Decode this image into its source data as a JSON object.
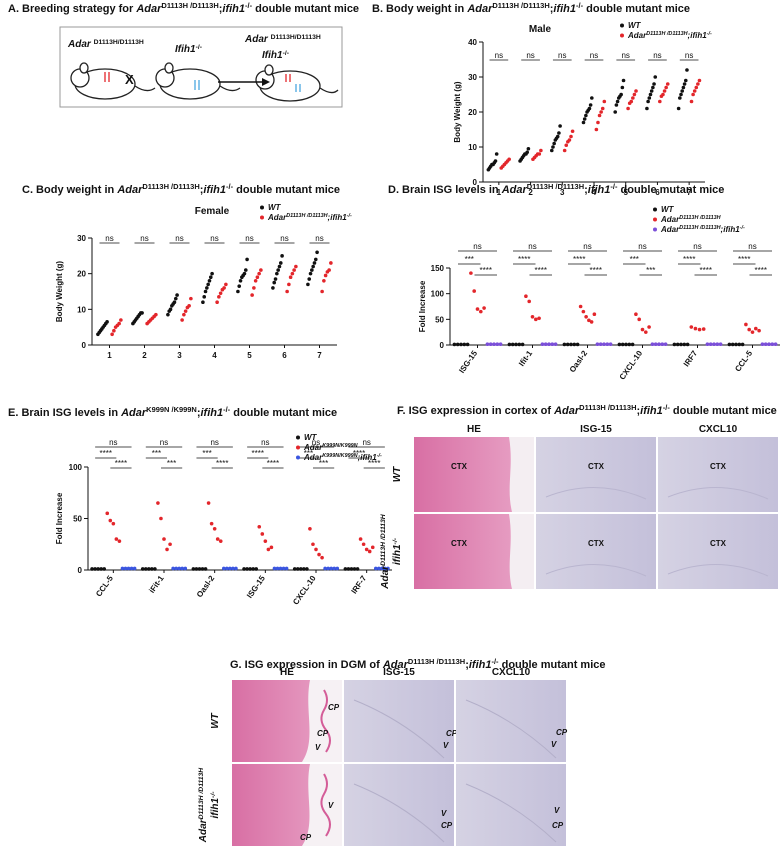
{
  "panel_a": {
    "title": "A.  Breeding strategy for AdarD1113H /D1113H;ifih1-/- double mutant mice",
    "parent1": "Adar D1113H/D1113H",
    "cross": "X",
    "parent2": "Ifih1-/-",
    "offspring": [
      "Adar D1113H/D1113H",
      "Ifih1-/-"
    ]
  },
  "chart_data": [
    {
      "type": "dotplot",
      "title": "B.   Body weight in AdarD1113H /D1113H;ifih1-/- double mutant mice",
      "subtitle": "Male",
      "ylabel": "Body Weight (g)",
      "categories": [
        "1",
        "2",
        "3",
        "4",
        "5",
        "6",
        "7"
      ],
      "series": [
        {
          "name": "WT",
          "color": "#111111",
          "values": [
            [
              3.5,
              4,
              4.5,
              5,
              5,
              5.5,
              6,
              8
            ],
            [
              6,
              6.5,
              7,
              7.5,
              8,
              8,
              8.5,
              9.5
            ],
            [
              9,
              10,
              11,
              12,
              12.5,
              13,
              14,
              16
            ],
            [
              17,
              18,
              19,
              20,
              20.5,
              21,
              22,
              24
            ],
            [
              20,
              22,
              23,
              24,
              24.5,
              25,
              27,
              29
            ],
            [
              21,
              23,
              24,
              25,
              26,
              27,
              28,
              30
            ],
            [
              21,
              24,
              25,
              26,
              27,
              28,
              29,
              32
            ]
          ]
        },
        {
          "name": "AdarD1113H /D1113H;ifih1-/-",
          "color": "#e3262b",
          "values": [
            [
              4,
              4.5,
              5,
              5.5,
              6,
              6.5
            ],
            [
              6.5,
              7,
              7.5,
              8,
              8,
              9
            ],
            [
              9,
              10.5,
              11.5,
              12,
              13,
              14.5
            ],
            [
              15,
              17,
              19,
              20,
              21,
              23
            ],
            [
              21,
              22.5,
              23,
              24,
              25,
              26
            ],
            [
              23,
              24.5,
              25,
              26,
              27,
              28
            ],
            [
              23,
              25,
              26,
              27,
              28,
              29
            ]
          ]
        }
      ],
      "ylim": [
        0,
        40
      ],
      "yticks": [
        0,
        10,
        20,
        30,
        40
      ],
      "significance": [
        [
          "ns"
        ],
        [
          "ns"
        ],
        [
          "ns"
        ],
        [
          "ns"
        ],
        [
          "ns"
        ],
        [
          "ns"
        ],
        [
          "ns"
        ]
      ],
      "legend": "upper right"
    },
    {
      "type": "dotplot",
      "title": "C.   Body weight in AdarD1113H /D1113H;ifih1-/- double mutant mice",
      "subtitle": "Female",
      "ylabel": "Body Weight (g)",
      "categories": [
        "1",
        "2",
        "3",
        "4",
        "5",
        "6",
        "7"
      ],
      "series": [
        {
          "name": "WT",
          "color": "#111111",
          "values": [
            [
              3,
              3.5,
              4,
              4.5,
              5,
              5.5,
              6,
              6.5
            ],
            [
              6,
              6.5,
              7,
              7.5,
              8,
              8.5,
              9,
              9
            ],
            [
              8.5,
              9.5,
              10,
              11,
              11.5,
              12,
              13,
              14
            ],
            [
              12,
              13.5,
              15,
              16,
              17,
              18,
              19,
              20
            ],
            [
              15,
              16.5,
              18,
              19,
              19.5,
              20,
              21,
              24
            ],
            [
              16,
              17.5,
              18.5,
              20,
              21,
              22,
              23,
              25
            ],
            [
              17,
              18.5,
              20,
              21,
              22,
              23,
              24,
              26
            ]
          ]
        },
        {
          "name": "AdarD1113H /D1113H;ifih1-/-",
          "color": "#e3262b",
          "values": [
            [
              3,
              4,
              5,
              5.5,
              6,
              7
            ],
            [
              6,
              6.5,
              7,
              7.5,
              8,
              8.5
            ],
            [
              7,
              8.5,
              9.5,
              10.5,
              11,
              13
            ],
            [
              12,
              13.5,
              14.5,
              15.5,
              16,
              17
            ],
            [
              14,
              16,
              18,
              19,
              20,
              21
            ],
            [
              15,
              17,
              19,
              20,
              21,
              22
            ],
            [
              15,
              18,
              19.5,
              20.5,
              21,
              23
            ]
          ]
        }
      ],
      "ylim": [
        0,
        30
      ],
      "yticks": [
        0,
        10,
        20,
        30
      ],
      "significance": [
        [
          "ns"
        ],
        [
          "ns"
        ],
        [
          "ns"
        ],
        [
          "ns"
        ],
        [
          "ns"
        ],
        [
          "ns"
        ],
        [
          "ns"
        ]
      ],
      "legend": "upper right"
    },
    {
      "type": "dotplot",
      "title": "D. Brain ISG levels in AdarD1113H /D1113H;ifih1-/- double mutant mice",
      "ylabel": "Fold Increase",
      "categories": [
        "ISG-15",
        "Ifit-1",
        "Oasl-2",
        "CXCL-10",
        "IRF7",
        "CCL-5"
      ],
      "series": [
        {
          "name": "WT",
          "color": "#111111",
          "values": [
            [
              1,
              1,
              1,
              1,
              1
            ],
            [
              1,
              1,
              1,
              1,
              1
            ],
            [
              1,
              1,
              1,
              1,
              1
            ],
            [
              1,
              1,
              1,
              1,
              1
            ],
            [
              1,
              1,
              1,
              1,
              1
            ],
            [
              1,
              1,
              1,
              1,
              1
            ]
          ]
        },
        {
          "name": "AdarD1113H /D1113H",
          "color": "#e3262b",
          "values": [
            [
              140,
              105,
              70,
              65,
              72
            ],
            [
              95,
              85,
              55,
              50,
              52
            ],
            [
              75,
              65,
              55,
              48,
              45,
              60
            ],
            [
              60,
              50,
              30,
              25,
              35
            ],
            [
              35,
              32,
              30,
              31
            ],
            [
              40,
              30,
              25,
              32,
              28
            ]
          ]
        },
        {
          "name": "AdarD1113H /D1113H;ifih1-/-",
          "color": "#7b4fd9",
          "values": [
            [
              1.5,
              1.5,
              1.5,
              1.5,
              1.5
            ],
            [
              1.5,
              1.5,
              1.5,
              1.5,
              1.5
            ],
            [
              1.5,
              1.5,
              1.5,
              1.5,
              1.5
            ],
            [
              1.5,
              1.5,
              1.5,
              1.5,
              1.5
            ],
            [
              1.5,
              1.5,
              1.5,
              1.5,
              1.5
            ],
            [
              1.5,
              1.5,
              1.5,
              1.5,
              1.5
            ]
          ]
        }
      ],
      "ylim": [
        0,
        150
      ],
      "yticks": [
        0,
        50,
        100,
        150
      ],
      "significance": [
        [
          "ns",
          "***",
          "****"
        ],
        [
          "ns",
          "****",
          "****"
        ],
        [
          "ns",
          "****",
          "****"
        ],
        [
          "ns",
          "***",
          "***"
        ],
        [
          "ns",
          "****",
          "****"
        ],
        [
          "ns",
          "****",
          "****"
        ]
      ],
      "legend": "upper right"
    },
    {
      "type": "dotplot",
      "title": "E. Brain ISG levels in AdarK999N /K999N;ifih1-/- double mutant mice",
      "ylabel": "Fold Increase",
      "categories": [
        "CCL-5",
        "iFit-1",
        "Oasl-2",
        "ISG-15",
        "CXCL-10",
        "IRF-7"
      ],
      "series": [
        {
          "name": "WT",
          "color": "#111111",
          "values": [
            [
              1,
              1,
              1,
              1,
              1
            ],
            [
              1,
              1,
              1,
              1,
              1
            ],
            [
              1,
              1,
              1,
              1,
              1
            ],
            [
              1,
              1,
              1,
              1,
              1
            ],
            [
              1,
              1,
              1,
              1,
              1
            ],
            [
              1,
              1,
              1,
              1,
              1
            ]
          ]
        },
        {
          "name": "AdarK999N/K999N",
          "color": "#e3262b",
          "values": [
            [
              55,
              48,
              45,
              30,
              28
            ],
            [
              65,
              50,
              30,
              20,
              25
            ],
            [
              65,
              45,
              40,
              30,
              28
            ],
            [
              42,
              35,
              28,
              20,
              22
            ],
            [
              40,
              25,
              20,
              15,
              12
            ],
            [
              30,
              25,
              20,
              18,
              22
            ]
          ]
        },
        {
          "name": "AdarK999N/K999N;ifih1-/-",
          "color": "#3b56e0",
          "values": [
            [
              1.5,
              1.5,
              1.5,
              1.5,
              1.5
            ],
            [
              1.5,
              1.5,
              1.5,
              1.5,
              1.5
            ],
            [
              1.5,
              1.5,
              1.5,
              1.5,
              1.5
            ],
            [
              1.5,
              1.5,
              1.5,
              1.5,
              1.5
            ],
            [
              1.5,
              1.5,
              1.5,
              1.5,
              1.5
            ],
            [
              1.5,
              1.5,
              1.5,
              1.5,
              1.5
            ]
          ]
        }
      ],
      "ylim": [
        0,
        100
      ],
      "yticks": [
        0,
        50,
        100
      ],
      "significance": [
        [
          "ns",
          "****",
          "****"
        ],
        [
          "ns",
          "***",
          "***"
        ],
        [
          "ns",
          "***",
          "****"
        ],
        [
          "ns",
          "****",
          "****"
        ],
        [
          "ns",
          "***",
          "***"
        ],
        [
          "ns",
          "****",
          "****"
        ]
      ],
      "legend": "upper right"
    }
  ],
  "panel_f": {
    "title": "F. ISG expression in cortex of AdarD1113H /D1113H;ifih1-/- double mutant mice",
    "columns": [
      "HE",
      "ISG-15",
      "CXCL10"
    ],
    "rows": [
      [
        "WT"
      ],
      [
        "AdarD1113H /D1113H",
        "ifih1-/-"
      ]
    ],
    "region": "CTX"
  },
  "panel_g": {
    "title": "G. ISG expression in DGM of AdarD1113H /D1113H;ifih1-/- double mutant mice",
    "columns": [
      "HE",
      "ISG-15",
      "CXCL10"
    ],
    "rows": [
      [
        "WT"
      ],
      [
        "AdarD1113H /D1113H",
        "ifih1-/-"
      ]
    ],
    "labels": [
      "CP",
      "V"
    ]
  }
}
